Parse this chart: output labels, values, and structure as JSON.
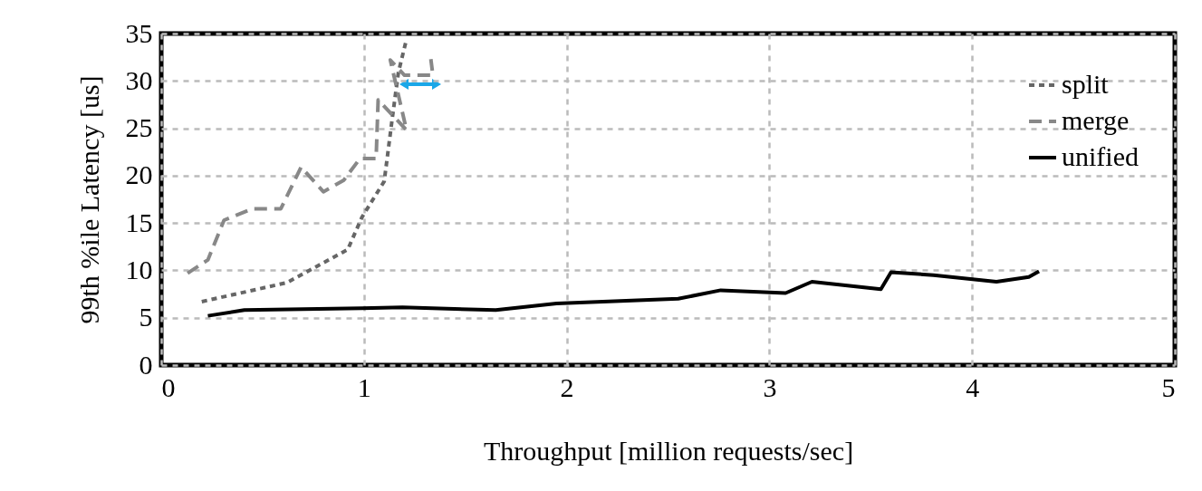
{
  "chart_data": {
    "type": "line",
    "xlabel": "Throughput [million requests/sec]",
    "ylabel": "99th %ile Latency [us]",
    "xlim": [
      0,
      5
    ],
    "xticks": [
      0,
      1,
      2,
      3,
      4,
      5
    ],
    "ylim": [
      0,
      35
    ],
    "yticks": [
      0,
      5,
      10,
      15,
      20,
      25,
      30,
      35
    ],
    "grid": true,
    "legend": "top right",
    "series": [
      {
        "name": "split",
        "color": "#666666",
        "line_style": "dotted",
        "x": [
          0.2,
          0.62,
          0.92,
          0.99,
          1.1,
          1.14,
          1.17,
          1.21
        ],
        "values": [
          6.7,
          8.7,
          12.2,
          15.6,
          19.4,
          26.1,
          30.9,
          34.4
        ]
      },
      {
        "name": "merge",
        "color": "#888888",
        "line_style": "dashed",
        "x": [
          0.13,
          0.23,
          0.31,
          0.45,
          0.59,
          0.69,
          0.8,
          0.9,
          0.98,
          1.06,
          1.07,
          1.21,
          1.13,
          1.2,
          1.34,
          1.33
        ],
        "values": [
          9.7,
          11.1,
          15.3,
          16.5,
          16.5,
          20.9,
          18.3,
          19.5,
          21.8,
          21.8,
          28.0,
          24.8,
          32.2,
          30.6,
          30.6,
          32.3
        ]
      },
      {
        "name": "unified",
        "color": "#000000",
        "line_style": "solid",
        "x": [
          0.23,
          0.41,
          0.99,
          1.19,
          1.65,
          1.95,
          2.55,
          2.76,
          3.08,
          3.21,
          3.55,
          3.6,
          3.81,
          4.12,
          4.28,
          4.33
        ],
        "values": [
          5.2,
          5.8,
          6.0,
          6.1,
          5.8,
          6.5,
          7.0,
          7.9,
          7.6,
          8.8,
          8.0,
          9.8,
          9.5,
          8.8,
          9.3,
          9.9
        ]
      }
    ]
  }
}
